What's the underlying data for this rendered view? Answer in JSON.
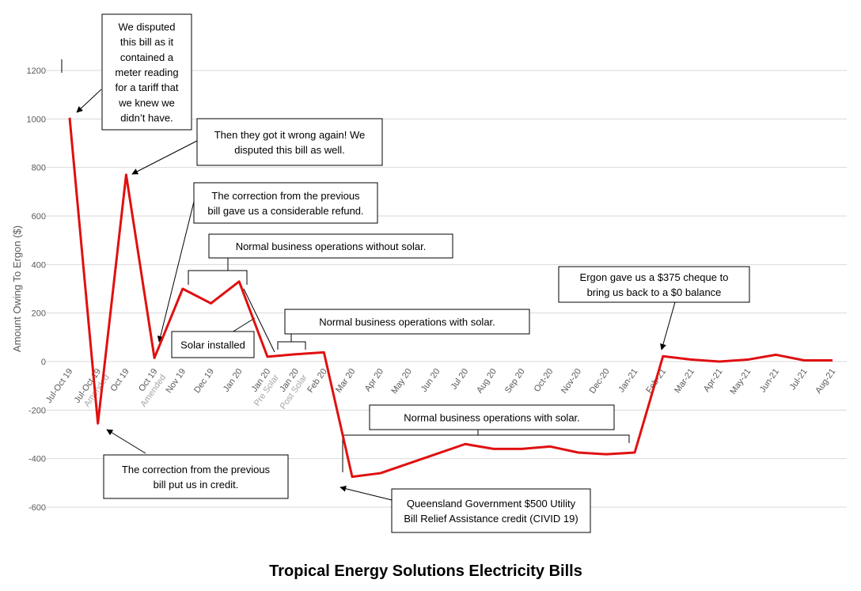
{
  "chart_data": {
    "type": "line",
    "title": "Tropical Energy Solutions Electricity Bills",
    "y_label": "Amount Owing To Ergon ($)",
    "categories": [
      [
        "Jul-Oct 19"
      ],
      [
        "Jul-Oct 19",
        "Amended"
      ],
      [
        "Oct 19"
      ],
      [
        "Oct 19",
        "Amended"
      ],
      [
        "Nov 19"
      ],
      [
        "Dec 19"
      ],
      [
        "Jan 20"
      ],
      [
        "Jan 20",
        "Pre Solar"
      ],
      [
        "Jan 20",
        "Post Solar"
      ],
      [
        "Feb 20"
      ],
      [
        "Mar 20"
      ],
      [
        "Apr 20"
      ],
      [
        "May 20"
      ],
      [
        "Jun 20"
      ],
      [
        "Jul 20"
      ],
      [
        "Aug 20"
      ],
      [
        "Sep 20"
      ],
      [
        "Oct-20"
      ],
      [
        "Nov-20"
      ],
      [
        "Dec-20"
      ],
      [
        "Jan-21"
      ],
      [
        "Feb-21"
      ],
      [
        "Mar-21"
      ],
      [
        "Apr-21"
      ],
      [
        "May-21"
      ],
      [
        "Jun-21"
      ],
      [
        "Jul-21"
      ],
      [
        "Aug-21"
      ]
    ],
    "series": [
      {
        "name": "Amount Owing To Ergon",
        "color": "#e01010",
        "values": [
          1005,
          -255,
          770,
          15,
          300,
          240,
          330,
          20,
          30,
          38,
          -475,
          -460,
          -420,
          -380,
          -340,
          -360,
          -360,
          -350,
          -375,
          -382,
          -375,
          22,
          8,
          0,
          8,
          28,
          5,
          5
        ]
      }
    ],
    "ylim": [
      -600,
      1200
    ],
    "yticks": [
      -600,
      -400,
      -200,
      0,
      200,
      400,
      600,
      800,
      1000,
      1200
    ],
    "grid": true,
    "annotations": [
      [
        "We disputed",
        "this bill as it",
        "contained a",
        "meter reading",
        "for a tariff that",
        "we knew we",
        "didn’t have."
      ],
      [
        "Then they got it wrong again!  We",
        "disputed this bill as well."
      ],
      [
        "The correction from the previous",
        "bill gave us a considerable refund."
      ],
      [
        "Normal business operations without solar."
      ],
      [
        "Solar installed"
      ],
      [
        "Normal business operations with solar."
      ],
      [
        "Ergon gave us a $375 cheque to",
        "bring us back to a $0 balance"
      ],
      [
        "The correction from the previous",
        "bill put us in credit."
      ],
      [
        "Normal business operations with solar."
      ],
      [
        "Queensland Government $500 Utility",
        "Bill Relief Assistance credit (CIVID 19)"
      ]
    ]
  }
}
